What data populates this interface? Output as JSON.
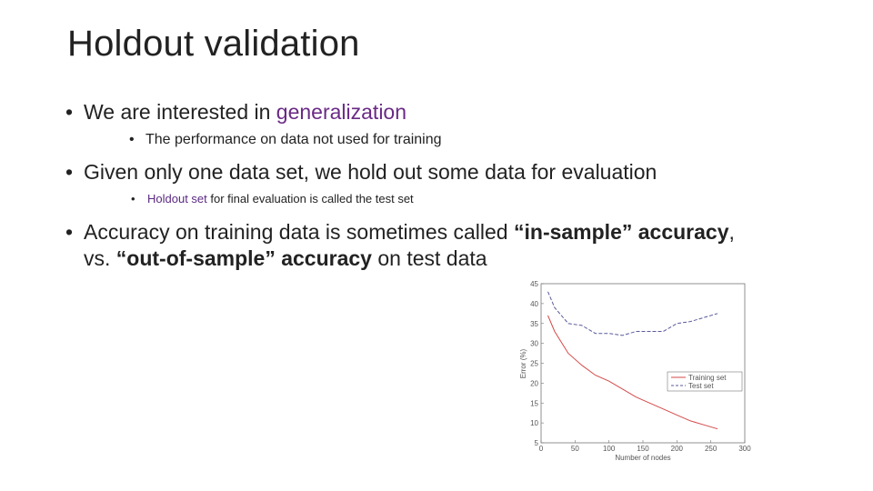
{
  "title": "Holdout validation",
  "bullets": {
    "b1": {
      "pre": "We are interested in ",
      "accent": "generalization"
    },
    "b1_sub": "The performance on data not used for training",
    "b2": "Given only one data set, we hold out some data for evaluation",
    "b2_sub": {
      "accent": "Holdout set",
      "post": " for final evaluation is called the test set"
    },
    "b3": {
      "pre": "Accuracy on training data is sometimes called ",
      "strong1": "“in-sample” accuracy",
      "mid": ",",
      "line2_pre": "vs. ",
      "strong2": "“out-of-sample” accuracy",
      "post": " on test data"
    }
  },
  "colors": {
    "accent": "#6a2a86",
    "training_line": "#d44a4a",
    "test_line": "#5a5a9a"
  },
  "chart_data": {
    "type": "line",
    "xlabel": "Number of nodes",
    "ylabel": "Error (%)",
    "xlim": [
      0,
      300
    ],
    "ylim": [
      5,
      45
    ],
    "xticks": [
      0,
      50,
      100,
      150,
      200,
      250,
      300
    ],
    "yticks": [
      5,
      10,
      15,
      20,
      25,
      30,
      35,
      40,
      45
    ],
    "legend_position": "center-right",
    "series": [
      {
        "name": "Training set",
        "style": "solid",
        "x": [
          10,
          20,
          40,
          60,
          80,
          100,
          120,
          140,
          160,
          180,
          200,
          220,
          240,
          260
        ],
        "y": [
          37,
          33,
          27.5,
          24.5,
          22,
          20.5,
          18.5,
          16.5,
          15,
          13.5,
          12,
          10.5,
          9.5,
          8.5
        ]
      },
      {
        "name": "Test set",
        "style": "dashed",
        "x": [
          10,
          20,
          40,
          60,
          80,
          100,
          120,
          140,
          160,
          180,
          200,
          220,
          240,
          260
        ],
        "y": [
          43,
          39,
          35,
          34.5,
          32.5,
          32.5,
          32,
          33,
          33,
          33,
          35,
          35.5,
          36.5,
          37.5
        ]
      }
    ]
  }
}
